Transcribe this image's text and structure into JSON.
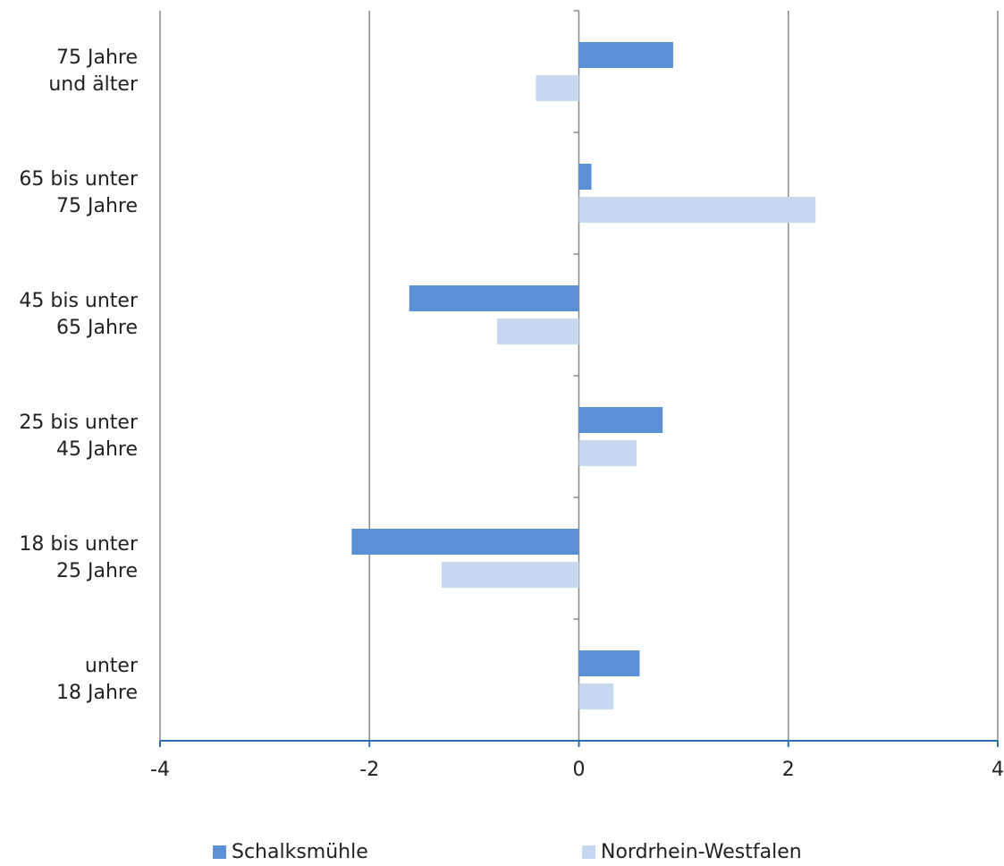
{
  "chart_data": {
    "type": "bar",
    "orientation": "horizontal",
    "categories": [
      "75 Jahre\nund älter",
      "65 bis unter\n75 Jahre",
      "45 bis unter\n65 Jahre",
      "25 bis unter\n45 Jahre",
      "18 bis unter\n25 Jahre",
      "unter\n18 Jahre"
    ],
    "series": [
      {
        "name": "Schalksmühle",
        "color": "#5b8fd6",
        "values": [
          0.9,
          0.12,
          -1.62,
          0.8,
          -2.17,
          0.58
        ]
      },
      {
        "name": "Nordrhein-Westfalen",
        "color": "#c5d8f0",
        "values": [
          -0.41,
          2.26,
          -0.78,
          0.55,
          -1.31,
          0.33
        ]
      }
    ],
    "xlim": [
      -4,
      4
    ],
    "xticks": [
      "-4",
      "-2",
      "0",
      "2",
      "4"
    ],
    "grid": true,
    "legend_position": "bottom"
  }
}
